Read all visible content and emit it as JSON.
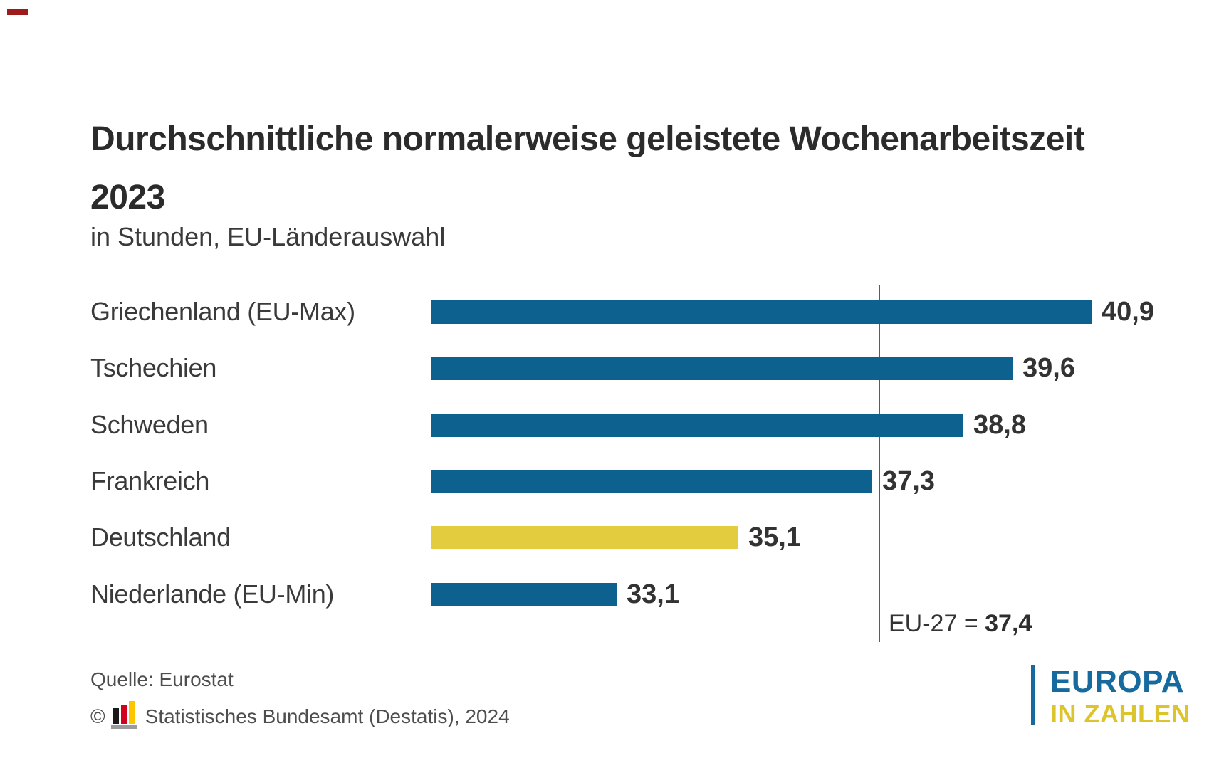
{
  "colors": {
    "background": "#FFFFFF",
    "bar_blue": "#0C618F",
    "bar_highlight_yellow": "#E3CC3D",
    "reference_line": "#27699A",
    "corner_mark_red": "#9E1B1B",
    "brand_blue": "#176A9E",
    "brand_yellow": "#DCC52C",
    "destatis_black": "#1A1A1A",
    "destatis_red": "#D4001F",
    "destatis_gold": "#FDC500",
    "destatis_gray": "#9B9B9B"
  },
  "chart_data": {
    "type": "bar",
    "orientation": "horizontal",
    "title": "Durchschnittliche normalerweise geleistete Wochenarbeitszeit 2023",
    "title_lines": [
      "Durchschnittliche normalerweise geleistete Wochenarbeitszeit",
      "2023"
    ],
    "subtitle": "in Stunden, EU-Länderauswahl",
    "unit": "Stunden",
    "xlim": [
      30,
      42
    ],
    "grid": false,
    "legend": false,
    "categories": [
      "Griechenland (EU-Max)",
      "Tschechien",
      "Schweden",
      "Frankreich",
      "Deutschland",
      "Niederlande (EU-Min)"
    ],
    "values": [
      40.9,
      39.6,
      38.8,
      37.3,
      35.1,
      33.1
    ],
    "rows": [
      {
        "label": "Griechenland (EU-Max)",
        "value": 40.9,
        "display": "40,9",
        "highlighted": false
      },
      {
        "label": "Tschechien",
        "value": 39.6,
        "display": "39,6",
        "highlighted": false
      },
      {
        "label": "Schweden",
        "value": 38.8,
        "display": "38,8",
        "highlighted": false
      },
      {
        "label": "Frankreich",
        "value": 37.3,
        "display": "37,3",
        "highlighted": false
      },
      {
        "label": "Deutschland",
        "value": 35.1,
        "display": "35,1",
        "highlighted": true
      },
      {
        "label": "Niederlande (EU-Min)",
        "value": 33.1,
        "display": "33,1",
        "highlighted": false
      }
    ],
    "reference_line": {
      "value": 37.4,
      "label_prefix": "EU-27 = ",
      "label_value": "37,4"
    }
  },
  "footer": {
    "source": "Quelle: Eurostat",
    "copyright_symbol": "©",
    "copyright_text": "Statistisches Bundesamt (Destatis), 2024"
  },
  "brand": {
    "line1": "EUROPA",
    "line2": "IN ZAHLEN"
  }
}
